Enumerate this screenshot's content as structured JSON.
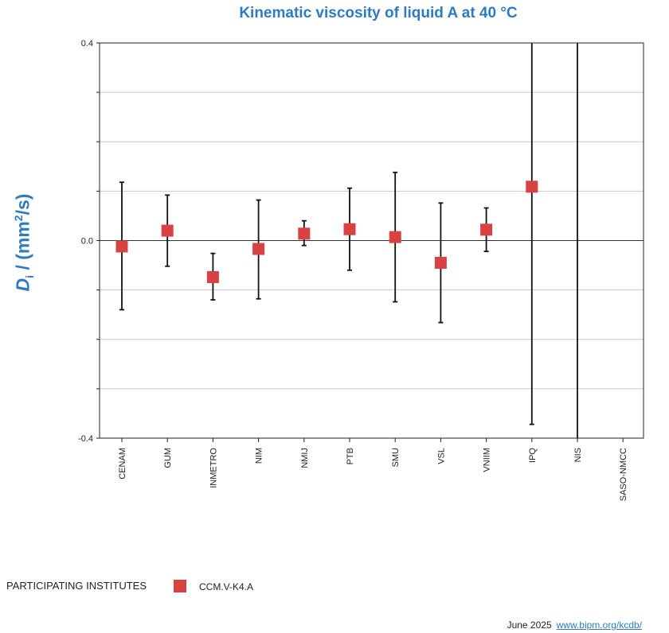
{
  "chart_data": {
    "type": "scatter",
    "title": "Kinematic viscosity of liquid A at 40 °C",
    "ylabel": {
      "symbol": "D",
      "subscript": "i",
      "rest": " / (mm",
      "power": "2",
      "unit_end": "/s)"
    },
    "ylim": [
      -0.4,
      0.4
    ],
    "yticks": [
      "0.4",
      "0.0",
      "-0.4"
    ],
    "grid": true,
    "legend_placement": "bottom-left",
    "categories": [
      "CENAM",
      "GUM",
      "INMETRO",
      "NIM",
      "NMIJ",
      "PTB",
      "SMU",
      "VSL",
      "VNIIM",
      "IPQ",
      "NIS",
      "SASO-NMCC"
    ],
    "series": [
      {
        "name": "CCM.V-K4.A",
        "color": "#d84242",
        "values": [
          -0.012,
          0.02,
          -0.074,
          -0.017,
          0.014,
          0.023,
          0.007,
          -0.045,
          0.022,
          0.109,
          null,
          null
        ],
        "err_low": [
          -0.14,
          -0.052,
          -0.12,
          -0.118,
          -0.01,
          -0.06,
          -0.124,
          -0.166,
          -0.022,
          -0.372,
          -0.4,
          null
        ],
        "err_high": [
          0.118,
          0.092,
          -0.026,
          0.082,
          0.04,
          0.106,
          0.138,
          0.076,
          0.066,
          0.4,
          0.4,
          null
        ]
      }
    ]
  },
  "legend_section": {
    "heading": "PARTICIPATING INSTITUTES",
    "entry": "CCM.V-K4.A"
  },
  "footer": {
    "date": "June 2025",
    "link_text": "www.bipm.org/kcdb/"
  }
}
